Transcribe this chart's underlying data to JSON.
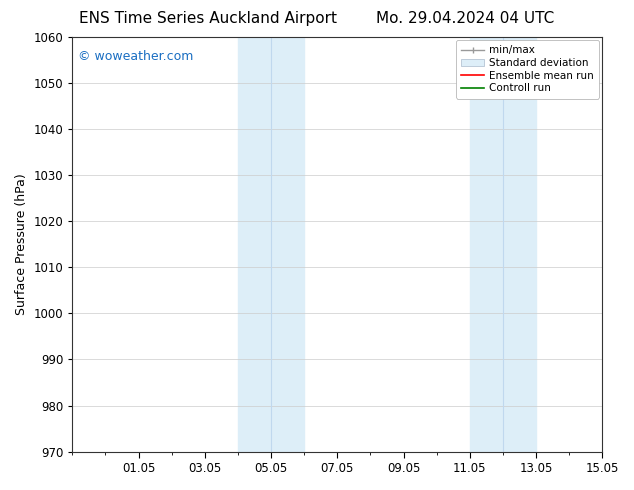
{
  "title_left": "ENS Time Series Auckland Airport",
  "title_right": "Mo. 29.04.2024 04 UTC",
  "ylabel": "Surface Pressure (hPa)",
  "ylim": [
    970,
    1060
  ],
  "yticks": [
    970,
    980,
    990,
    1000,
    1010,
    1020,
    1030,
    1040,
    1050,
    1060
  ],
  "xlim": [
    0,
    16
  ],
  "xtick_labels": [
    "01.05",
    "03.05",
    "05.05",
    "07.05",
    "09.05",
    "11.05",
    "13.05",
    "15.05"
  ],
  "xtick_positions": [
    2,
    4,
    6,
    8,
    10,
    12,
    14,
    16
  ],
  "shaded_regions": [
    {
      "x_start": 5.0,
      "x_end": 6.0,
      "color": "#ddeef8"
    },
    {
      "x_start": 6.0,
      "x_end": 7.0,
      "color": "#ddeef8"
    },
    {
      "x_start": 12.0,
      "x_end": 13.0,
      "color": "#ddeef8"
    },
    {
      "x_start": 13.0,
      "x_end": 14.0,
      "color": "#ddeef8"
    }
  ],
  "shaded_divider_color": "#c0d8ee",
  "watermark_text": "© woweather.com",
  "watermark_color": "#1a6ec2",
  "legend_items": [
    {
      "label": "min/max"
    },
    {
      "label": "Standard deviation"
    },
    {
      "label": "Ensemble mean run"
    },
    {
      "label": "Controll run"
    }
  ],
  "bg_color": "#ffffff",
  "grid_color": "#cccccc",
  "title_fontsize": 11,
  "axis_fontsize": 9,
  "tick_fontsize": 8.5,
  "watermark_fontsize": 9
}
